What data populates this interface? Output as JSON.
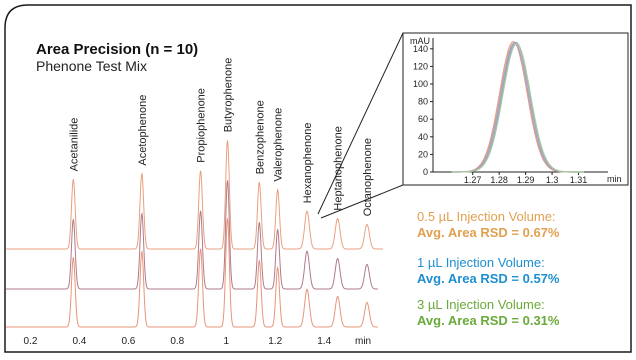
{
  "chart_data": {
    "type": "line",
    "title": "Area Precision (n = 10)",
    "subtitle": "Phenone Test Mix",
    "xlabel": "min",
    "xlim": [
      0.1,
      1.62
    ],
    "x_ticks": [
      "0.2",
      "0.4",
      "0.6",
      "0.8",
      "1",
      "1.2",
      "1.4"
    ],
    "peaks": [
      {
        "name": "Acetanilide",
        "rt": 0.375,
        "rel_height": 0.48
      },
      {
        "name": "Acetophenone",
        "rt": 0.655,
        "rel_height": 0.52
      },
      {
        "name": "Propiophenone",
        "rt": 0.895,
        "rel_height": 0.54
      },
      {
        "name": "Butyrophenone",
        "rt": 1.005,
        "rel_height": 0.75
      },
      {
        "name": "Benzophenone",
        "rt": 1.135,
        "rel_height": 0.46
      },
      {
        "name": "Valerophenone",
        "rt": 1.21,
        "rel_height": 0.41
      },
      {
        "name": "Hexanophenone",
        "rt": 1.33,
        "rel_height": 0.26
      },
      {
        "name": "Heptanophenone",
        "rt": 1.455,
        "rel_height": 0.21
      },
      {
        "name": "Octanophenone",
        "rt": 1.575,
        "rel_height": 0.17
      }
    ],
    "traces": [
      {
        "injection_volume": "0.5 µL",
        "color": "#e8a080"
      },
      {
        "injection_volume": "1 µL",
        "color": "#b07a8a"
      },
      {
        "injection_volume": "3 µL",
        "color": "#e8947a"
      }
    ],
    "inset": {
      "ylabel": "mAU",
      "xlabel": "min",
      "xlim": [
        1.255,
        1.32
      ],
      "ylim": [
        0,
        150
      ],
      "x_ticks": [
        "1.27",
        "1.28",
        "1.29",
        "1.3",
        "1.31"
      ],
      "y_ticks": [
        "0",
        "20",
        "40",
        "60",
        "80",
        "100",
        "120",
        "140"
      ],
      "peak_center": 1.286,
      "peak_height": 148,
      "overlay_colors": [
        "#e8a080",
        "#8aa6c8",
        "#b0a0c0",
        "#a8c8a0"
      ]
    }
  },
  "annotations": [
    {
      "label": "0.5 µL Injection Volume:",
      "value": "Avg. Area RSD = 0.67%",
      "color": "#e0a050"
    },
    {
      "label": "1 µL Injection Volume:",
      "value": "Avg. Area RSD = 0.57%",
      "color": "#1e8fd0"
    },
    {
      "label": "3 µL Injection Volume:",
      "value": "Avg. Area RSD = 0.31%",
      "color": "#6aaa3a"
    }
  ],
  "colors": {
    "frame": "#1a1a1a",
    "zoom_lines": "#222222"
  }
}
